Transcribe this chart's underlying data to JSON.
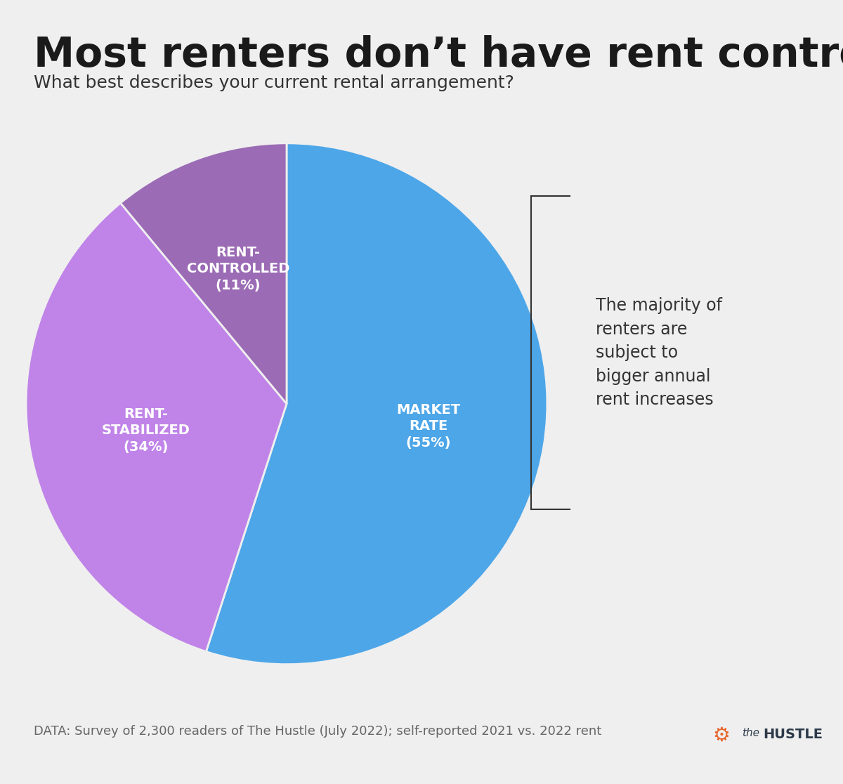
{
  "title": "Most renters don’t have rent control",
  "subtitle": "What best describes your current rental arrangement?",
  "slices": [
    55,
    34,
    11
  ],
  "labels": [
    "MARKET\nRATE\n(55%)",
    "RENT-\nSTABILIZED\n(34%)",
    "RENT-\nCONTROLLED\n(11%)"
  ],
  "colors": [
    "#4DA6E8",
    "#C084E8",
    "#9B6BB5"
  ],
  "annotation": "The majority of\nrenters are\nsubject to\nbigger annual\nrent increases",
  "footer": "DATA: Survey of 2,300 readers of The Hustle (July 2022); self-reported 2021 vs. 2022 rent",
  "bg_color": "#EFEFEF",
  "title_color": "#1a1a1a",
  "subtitle_color": "#333333",
  "label_color": "#FFFFFF",
  "annotation_color": "#333333",
  "footer_color": "#666666",
  "wedge_linewidth": 2,
  "wedge_linecolor": "#EFEFEF",
  "start_angle": 90
}
